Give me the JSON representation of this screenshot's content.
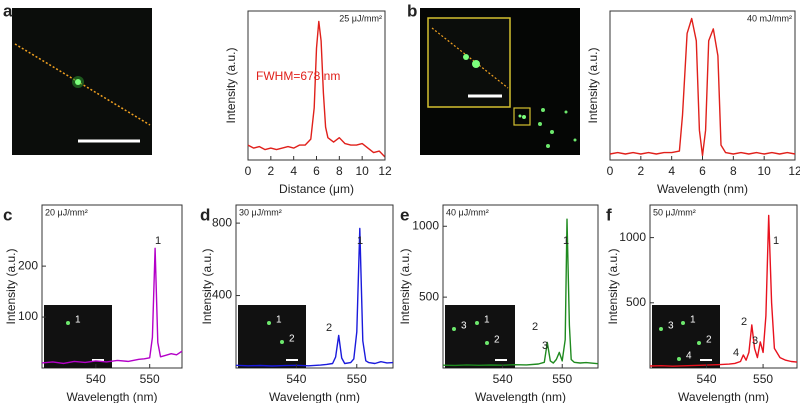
{
  "chart_data": [
    {
      "type": "line",
      "panel_label": "a",
      "xlabel": "Distance (μm)",
      "ylabel": "Intensity (a.u.)",
      "color": "#e0201b",
      "annotations": [
        "25 μJ/mm²",
        "FWHM=678 nm"
      ],
      "x": [
        0,
        0.5,
        1,
        1.5,
        2,
        2.5,
        3,
        3.5,
        4,
        4.5,
        5,
        5.5,
        5.8,
        6,
        6.2,
        6.4,
        6.6,
        6.8,
        7,
        7.5,
        8,
        8.5,
        9,
        9.5,
        10,
        10.5,
        11,
        11.5,
        12
      ],
      "values": [
        0.1,
        0.08,
        0.09,
        0.07,
        0.08,
        0.07,
        0.08,
        0.09,
        0.08,
        0.1,
        0.1,
        0.14,
        0.35,
        0.75,
        0.93,
        0.8,
        0.45,
        0.22,
        0.15,
        0.12,
        0.15,
        0.11,
        0.1,
        0.1,
        0.11,
        0.08,
        0.05,
        0.06,
        0.02
      ],
      "xlim": [
        0,
        12
      ],
      "xticks": [
        0,
        2,
        4,
        6,
        8,
        10,
        12
      ],
      "ylim": [
        0,
        1
      ]
    },
    {
      "type": "line",
      "panel_label": "b",
      "xlabel": "Wavelength (nm)",
      "ylabel": "Intensity (a.u.)",
      "color": "#e0201b",
      "annotations": [
        "40 mJ/mm²"
      ],
      "x": [
        0,
        0.5,
        1,
        1.5,
        2,
        2.5,
        3,
        3.5,
        4,
        4.5,
        4.7,
        5,
        5.3,
        5.6,
        5.8,
        6,
        6.2,
        6.4,
        6.7,
        7,
        7.2,
        7.5,
        8,
        8.5,
        9,
        9.5,
        10,
        10.5,
        11,
        11.5,
        12
      ],
      "values": [
        0.04,
        0.05,
        0.04,
        0.05,
        0.04,
        0.05,
        0.04,
        0.05,
        0.05,
        0.06,
        0.3,
        0.85,
        0.95,
        0.8,
        0.2,
        0.03,
        0.2,
        0.8,
        0.88,
        0.7,
        0.1,
        0.05,
        0.04,
        0.05,
        0.04,
        0.05,
        0.04,
        0.05,
        0.04,
        0.05,
        0.04
      ],
      "xlim": [
        0,
        12
      ],
      "xticks": [
        0,
        2,
        4,
        6,
        8,
        10,
        12
      ],
      "ylim": [
        0,
        1
      ]
    },
    {
      "type": "line",
      "panel_label": "c",
      "xlabel": "Wavelength (nm)",
      "ylabel": "Intensity (a.u.)",
      "color": "#b400c8",
      "annotations": [
        "20 μJ/mm²"
      ],
      "peak_labels": [
        "1"
      ],
      "inset_labels": [
        "1"
      ],
      "x": [
        530,
        532,
        534,
        536,
        538,
        540,
        542,
        544,
        546,
        548,
        549,
        550,
        550.5,
        551,
        551.5,
        552,
        553,
        554,
        555,
        556
      ],
      "values": [
        10,
        12,
        9,
        13,
        11,
        14,
        12,
        15,
        13,
        17,
        18,
        20,
        60,
        235,
        50,
        22,
        25,
        28,
        26,
        33
      ],
      "xlim": [
        530,
        556
      ],
      "xticks": [
        540,
        550
      ],
      "ylim": [
        0,
        320
      ],
      "yticks": [
        100,
        200
      ]
    },
    {
      "type": "line",
      "panel_label": "d",
      "xlabel": "Wavelength (nm)",
      "ylabel": "Intensity (a.u.)",
      "color": "#1a1adc",
      "annotations": [
        "30 μJ/mm²"
      ],
      "peak_labels": [
        "1",
        "2"
      ],
      "inset_labels": [
        "1",
        "2"
      ],
      "x": [
        530,
        532,
        534,
        536,
        538,
        540,
        542,
        544,
        545,
        546,
        546.5,
        547,
        547.5,
        548,
        549,
        549.5,
        550,
        550.5,
        551,
        551.5,
        552,
        553,
        554,
        555,
        556
      ],
      "values": [
        15,
        12,
        14,
        11,
        13,
        15,
        12,
        16,
        20,
        25,
        60,
        180,
        55,
        25,
        30,
        50,
        200,
        770,
        150,
        40,
        30,
        25,
        35,
        28,
        30
      ],
      "xlim": [
        530,
        556
      ],
      "xticks": [
        540,
        550
      ],
      "ylim": [
        0,
        900
      ],
      "yticks": [
        400,
        800
      ]
    },
    {
      "type": "line",
      "panel_label": "e",
      "xlabel": "Wavelength (nm)",
      "ylabel": "Intensity (a.u.)",
      "color": "#1f8a1f",
      "annotations": [
        "40 μJ/mm²"
      ],
      "peak_labels": [
        "1",
        "2",
        "3"
      ],
      "inset_labels": [
        "3",
        "1",
        "2"
      ],
      "x": [
        530,
        532,
        534,
        536,
        538,
        540,
        542,
        544,
        546,
        547,
        547.5,
        548,
        548.5,
        549,
        549.5,
        550,
        550.5,
        550.8,
        551.2,
        551.5,
        552,
        553,
        554,
        556
      ],
      "values": [
        20,
        18,
        22,
        19,
        21,
        20,
        23,
        22,
        28,
        40,
        180,
        50,
        35,
        60,
        110,
        50,
        200,
        1050,
        300,
        60,
        40,
        35,
        38,
        30
      ],
      "xlim": [
        530,
        556
      ],
      "xticks": [
        540,
        550
      ],
      "ylim": [
        0,
        1150
      ],
      "yticks": [
        500,
        1000
      ]
    },
    {
      "type": "line",
      "panel_label": "f",
      "xlabel": "Wavelength (nm)",
      "ylabel": "Intensity (a.u.)",
      "color": "#e8121e",
      "annotations": [
        "50 μJ/mm²"
      ],
      "peak_labels": [
        "1",
        "2",
        "3",
        "4"
      ],
      "inset_labels": [
        "3",
        "1",
        "2",
        "4"
      ],
      "x": [
        530,
        532,
        534,
        536,
        538,
        540,
        542,
        544,
        545,
        546,
        546.5,
        547,
        547.5,
        548,
        548.5,
        549,
        549.5,
        550,
        550.5,
        551,
        551.5,
        552,
        553,
        554,
        555,
        556
      ],
      "values": [
        15,
        18,
        14,
        17,
        20,
        22,
        25,
        30,
        35,
        50,
        100,
        60,
        120,
        330,
        150,
        80,
        200,
        120,
        400,
        1170,
        500,
        150,
        80,
        60,
        50,
        45
      ],
      "xlim": [
        530,
        556
      ],
      "xticks": [
        540,
        550
      ],
      "ylim": [
        0,
        1250
      ],
      "yticks": [
        500,
        1000
      ]
    }
  ]
}
